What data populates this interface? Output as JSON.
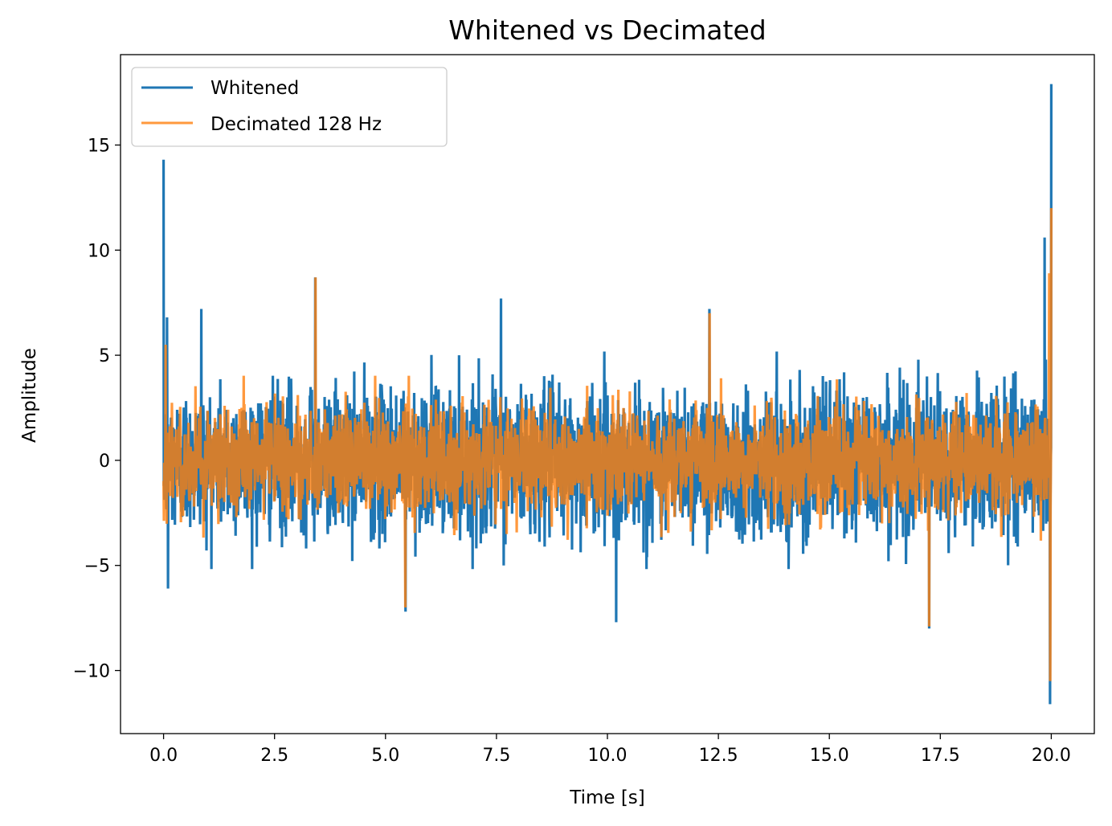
{
  "chart_data": {
    "type": "line",
    "title": "Whitened vs Decimated",
    "xlabel": "Time [s]",
    "ylabel": "Amplitude",
    "xlim": [
      -0.97,
      20.97
    ],
    "ylim": [
      -13.0,
      19.3
    ],
    "xticks": [
      0.0,
      2.5,
      5.0,
      7.5,
      10.0,
      12.5,
      15.0,
      17.5,
      20.0
    ],
    "xtick_labels": [
      "0.0",
      "2.5",
      "5.0",
      "7.5",
      "10.0",
      "12.5",
      "15.0",
      "17.5",
      "20.0"
    ],
    "yticks": [
      -10,
      -5,
      0,
      5,
      10,
      15
    ],
    "ytick_labels": [
      "−10",
      "−5",
      "0",
      "5",
      "10",
      "15"
    ],
    "grid": false,
    "legend_position": "top-left",
    "series": [
      {
        "name": "Whitened",
        "color": "#1f77b4",
        "x_start": 0.0,
        "x_end": 20.0,
        "typical_range": [
          -4.5,
          4.5
        ],
        "notable_points": [
          {
            "x": 0.0,
            "y": 14.3
          },
          {
            "x": 0.08,
            "y": 6.8
          },
          {
            "x": 0.1,
            "y": -6.1
          },
          {
            "x": 0.85,
            "y": 7.2
          },
          {
            "x": 3.42,
            "y": 8.7
          },
          {
            "x": 5.45,
            "y": -7.2
          },
          {
            "x": 7.6,
            "y": 7.7
          },
          {
            "x": 10.2,
            "y": -7.7
          },
          {
            "x": 12.3,
            "y": 7.2
          },
          {
            "x": 17.25,
            "y": -8.0
          },
          {
            "x": 19.85,
            "y": 10.6
          },
          {
            "x": 19.97,
            "y": -11.6
          },
          {
            "x": 20.0,
            "y": 17.9
          }
        ]
      },
      {
        "name": "Decimated 128 Hz",
        "color": "#ff7f0e",
        "x_start": 0.0,
        "x_end": 20.0,
        "typical_range": [
          -3.5,
          3.5
        ],
        "notable_points": [
          {
            "x": 0.05,
            "y": 5.5
          },
          {
            "x": 3.42,
            "y": 8.7
          },
          {
            "x": 5.45,
            "y": -7.0
          },
          {
            "x": 12.3,
            "y": 7.0
          },
          {
            "x": 17.25,
            "y": -7.9
          },
          {
            "x": 19.95,
            "y": 8.9
          },
          {
            "x": 19.98,
            "y": -10.5
          },
          {
            "x": 20.0,
            "y": 12.0
          }
        ]
      }
    ]
  }
}
